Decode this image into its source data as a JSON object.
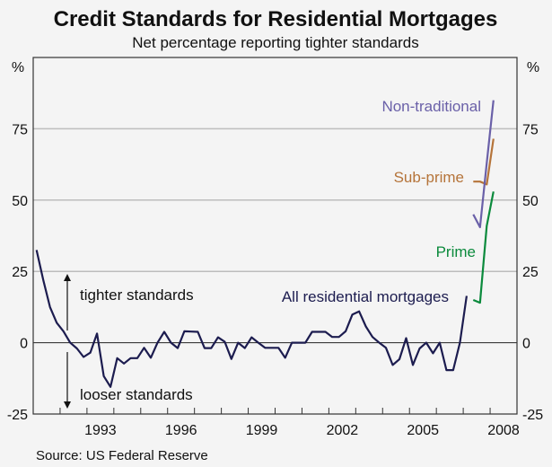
{
  "chart_data": {
    "type": "line",
    "title": "Credit Standards for Residential Mortgages",
    "subtitle": "Net percentage reporting tighter standards",
    "ylabel_left": "%",
    "ylabel_right": "%",
    "ylim": [
      -25,
      100
    ],
    "yticks": [
      -25,
      0,
      25,
      50,
      75
    ],
    "xlim": [
      1991,
      2009
    ],
    "xtick_labels": [
      "1993",
      "1996",
      "1999",
      "2002",
      "2005",
      "2008"
    ],
    "grid": true,
    "annotations": {
      "up": "tighter standards",
      "down": "looser standards"
    },
    "source": "Source: US Federal Reserve",
    "series": [
      {
        "name": "All residential mortgages",
        "color": "#1c1c4f",
        "start": "1991Q1",
        "frequency": "quarterly",
        "values": [
          32.5,
          22,
          12.5,
          7,
          4,
          0,
          -2,
          -5,
          -3.5,
          3.2,
          -11.7,
          -15.5,
          -5.4,
          -7.3,
          -5.4,
          -5.4,
          -1.8,
          -5.3,
          0,
          3.8,
          0,
          -1.9,
          4,
          3.9,
          3.8,
          -1.9,
          -1.9,
          1.9,
          0.3,
          -5.7,
          0,
          -1.9,
          1.9,
          0,
          -1.8,
          -1.8,
          -1.8,
          -5.3,
          0,
          0,
          0,
          3.8,
          3.8,
          3.8,
          2,
          2,
          4,
          9.9,
          11,
          5.7,
          2,
          0,
          -1.8,
          -7.8,
          -5.8,
          1.6,
          -7.8,
          -2,
          0,
          -3.7,
          0,
          -9.6,
          -9.6,
          0,
          16.4
        ]
      },
      {
        "name": "Prime",
        "color": "#0b8a3c",
        "start": "2007Q2",
        "frequency": "quarterly",
        "values": [
          15,
          14,
          41,
          53
        ]
      },
      {
        "name": "Sub-prime",
        "color": "#b5743a",
        "start": "2007Q2",
        "frequency": "quarterly",
        "values": [
          56.5,
          56.5,
          55.5,
          71.5
        ]
      },
      {
        "name": "Non-traditional",
        "color": "#6a60a8",
        "start": "2007Q2",
        "frequency": "quarterly",
        "values": [
          45,
          40.5,
          63,
          85
        ]
      }
    ]
  }
}
